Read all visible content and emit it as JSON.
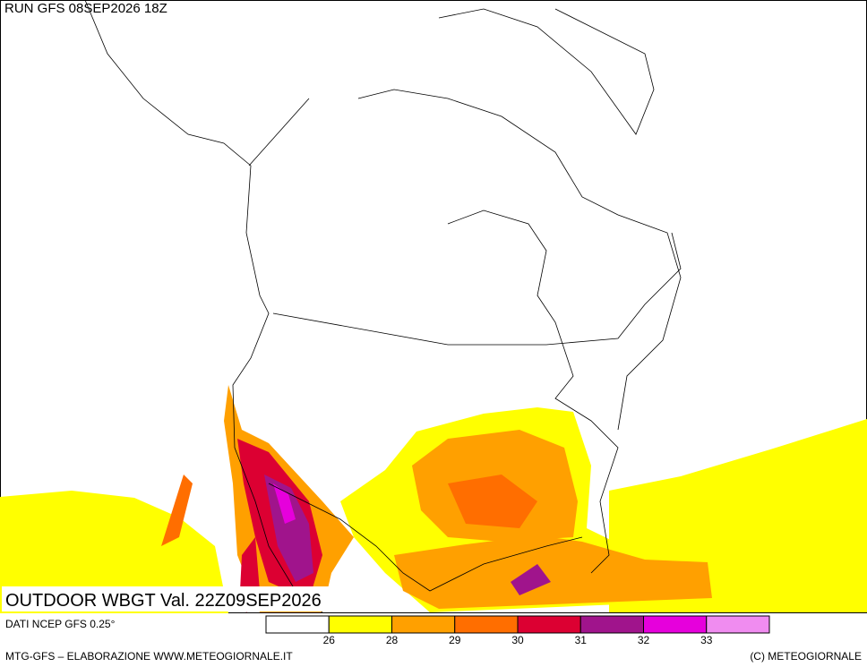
{
  "header": {
    "run": "RUN GFS 08SEP2026 18Z"
  },
  "map": {
    "label": "OUTDOOR WBGT Val. 22Z09SEP2026"
  },
  "legend": {
    "source": "DATI NCEP GFS 0.25°",
    "colors": [
      "#ffffff",
      "#ffff00",
      "#ffa000",
      "#ff6e00",
      "#dc0032",
      "#a0148c",
      "#e600dc",
      "#f08cf0"
    ],
    "ticks": [
      "26",
      "28",
      "29",
      "30",
      "31",
      "32",
      "33"
    ]
  },
  "footer": {
    "left": "MTG-GFS – ELABORAZIONE WWW.METEOGIORNALE.IT",
    "right": "(C) METEOGIORNALE"
  }
}
